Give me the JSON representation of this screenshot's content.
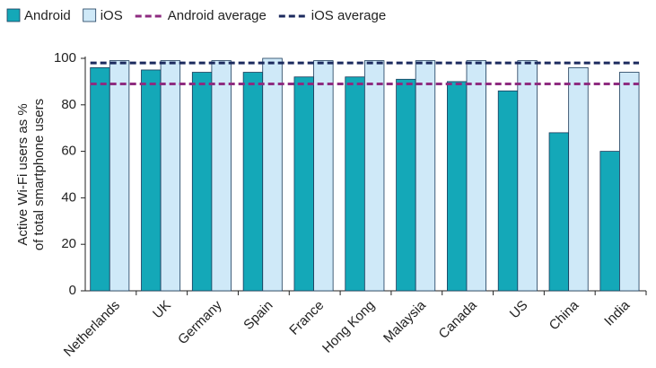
{
  "chart_data": {
    "type": "bar",
    "ylabel": [
      "Active Wi-Fi users as %",
      "of total smartphone users"
    ],
    "categories": [
      "Netherlands",
      "UK",
      "Germany",
      "Spain",
      "France",
      "Hong Kong",
      "Malaysia",
      "Canada",
      "US",
      "China",
      "India"
    ],
    "series": [
      {
        "name": "Android",
        "color": "#14a8b8",
        "values": [
          96,
          95,
          94,
          94,
          92,
          92,
          91,
          90,
          86,
          68,
          60
        ]
      },
      {
        "name": "iOS",
        "color": "#cfe9f8",
        "values": [
          99,
          99,
          99,
          100,
          99,
          99,
          99,
          99,
          99,
          96,
          94
        ]
      }
    ],
    "reference_lines": [
      {
        "name": "Android average",
        "color": "#8e2c80",
        "value": 89
      },
      {
        "name": "iOS average",
        "color": "#1b2a5e",
        "value": 98
      }
    ],
    "ylim": [
      0,
      100
    ],
    "yticks": [
      0,
      20,
      40,
      60,
      80,
      100
    ]
  }
}
